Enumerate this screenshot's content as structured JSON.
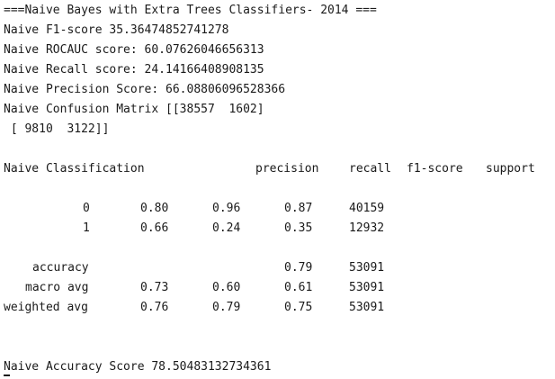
{
  "output": {
    "header": "===Naive Bayes with Extra Trees Classifiers- 2014 ===",
    "f1": "Naive F1-score 35.36474852741278",
    "rocauc": "Naive ROCAUC score: 60.07626046656313",
    "recall": "Naive Recall score: 24.14166408908135",
    "precision": "Naive Precision Score: 66.08806096528366",
    "cm_line1": "Naive Confusion Matrix [[38557  1602]",
    "cm_line2": " [ 9810  3122]]",
    "report_title": "Naive Classification",
    "columns": {
      "precision": "precision",
      "recall": "recall",
      "f1": "f1-score",
      "support": "support"
    },
    "rows": [
      {
        "label": "0",
        "c1": "0.80",
        "c2": "0.96",
        "c3": "0.87",
        "c4": "40159"
      },
      {
        "label": "1",
        "c1": "0.66",
        "c2": "0.24",
        "c3": "0.35",
        "c4": "12932"
      },
      {
        "label": "accuracy",
        "c1": "",
        "c2": "",
        "c3": "0.79",
        "c4": "53091"
      },
      {
        "label": "macro avg",
        "c1": "0.73",
        "c2": "0.60",
        "c3": "0.61",
        "c4": "53091"
      },
      {
        "label": "weighted avg",
        "c1": "0.76",
        "c2": "0.79",
        "c3": "0.75",
        "c4": "53091"
      }
    ],
    "accuracy_line": "Naive Accuracy Score 78.50483132734361"
  }
}
